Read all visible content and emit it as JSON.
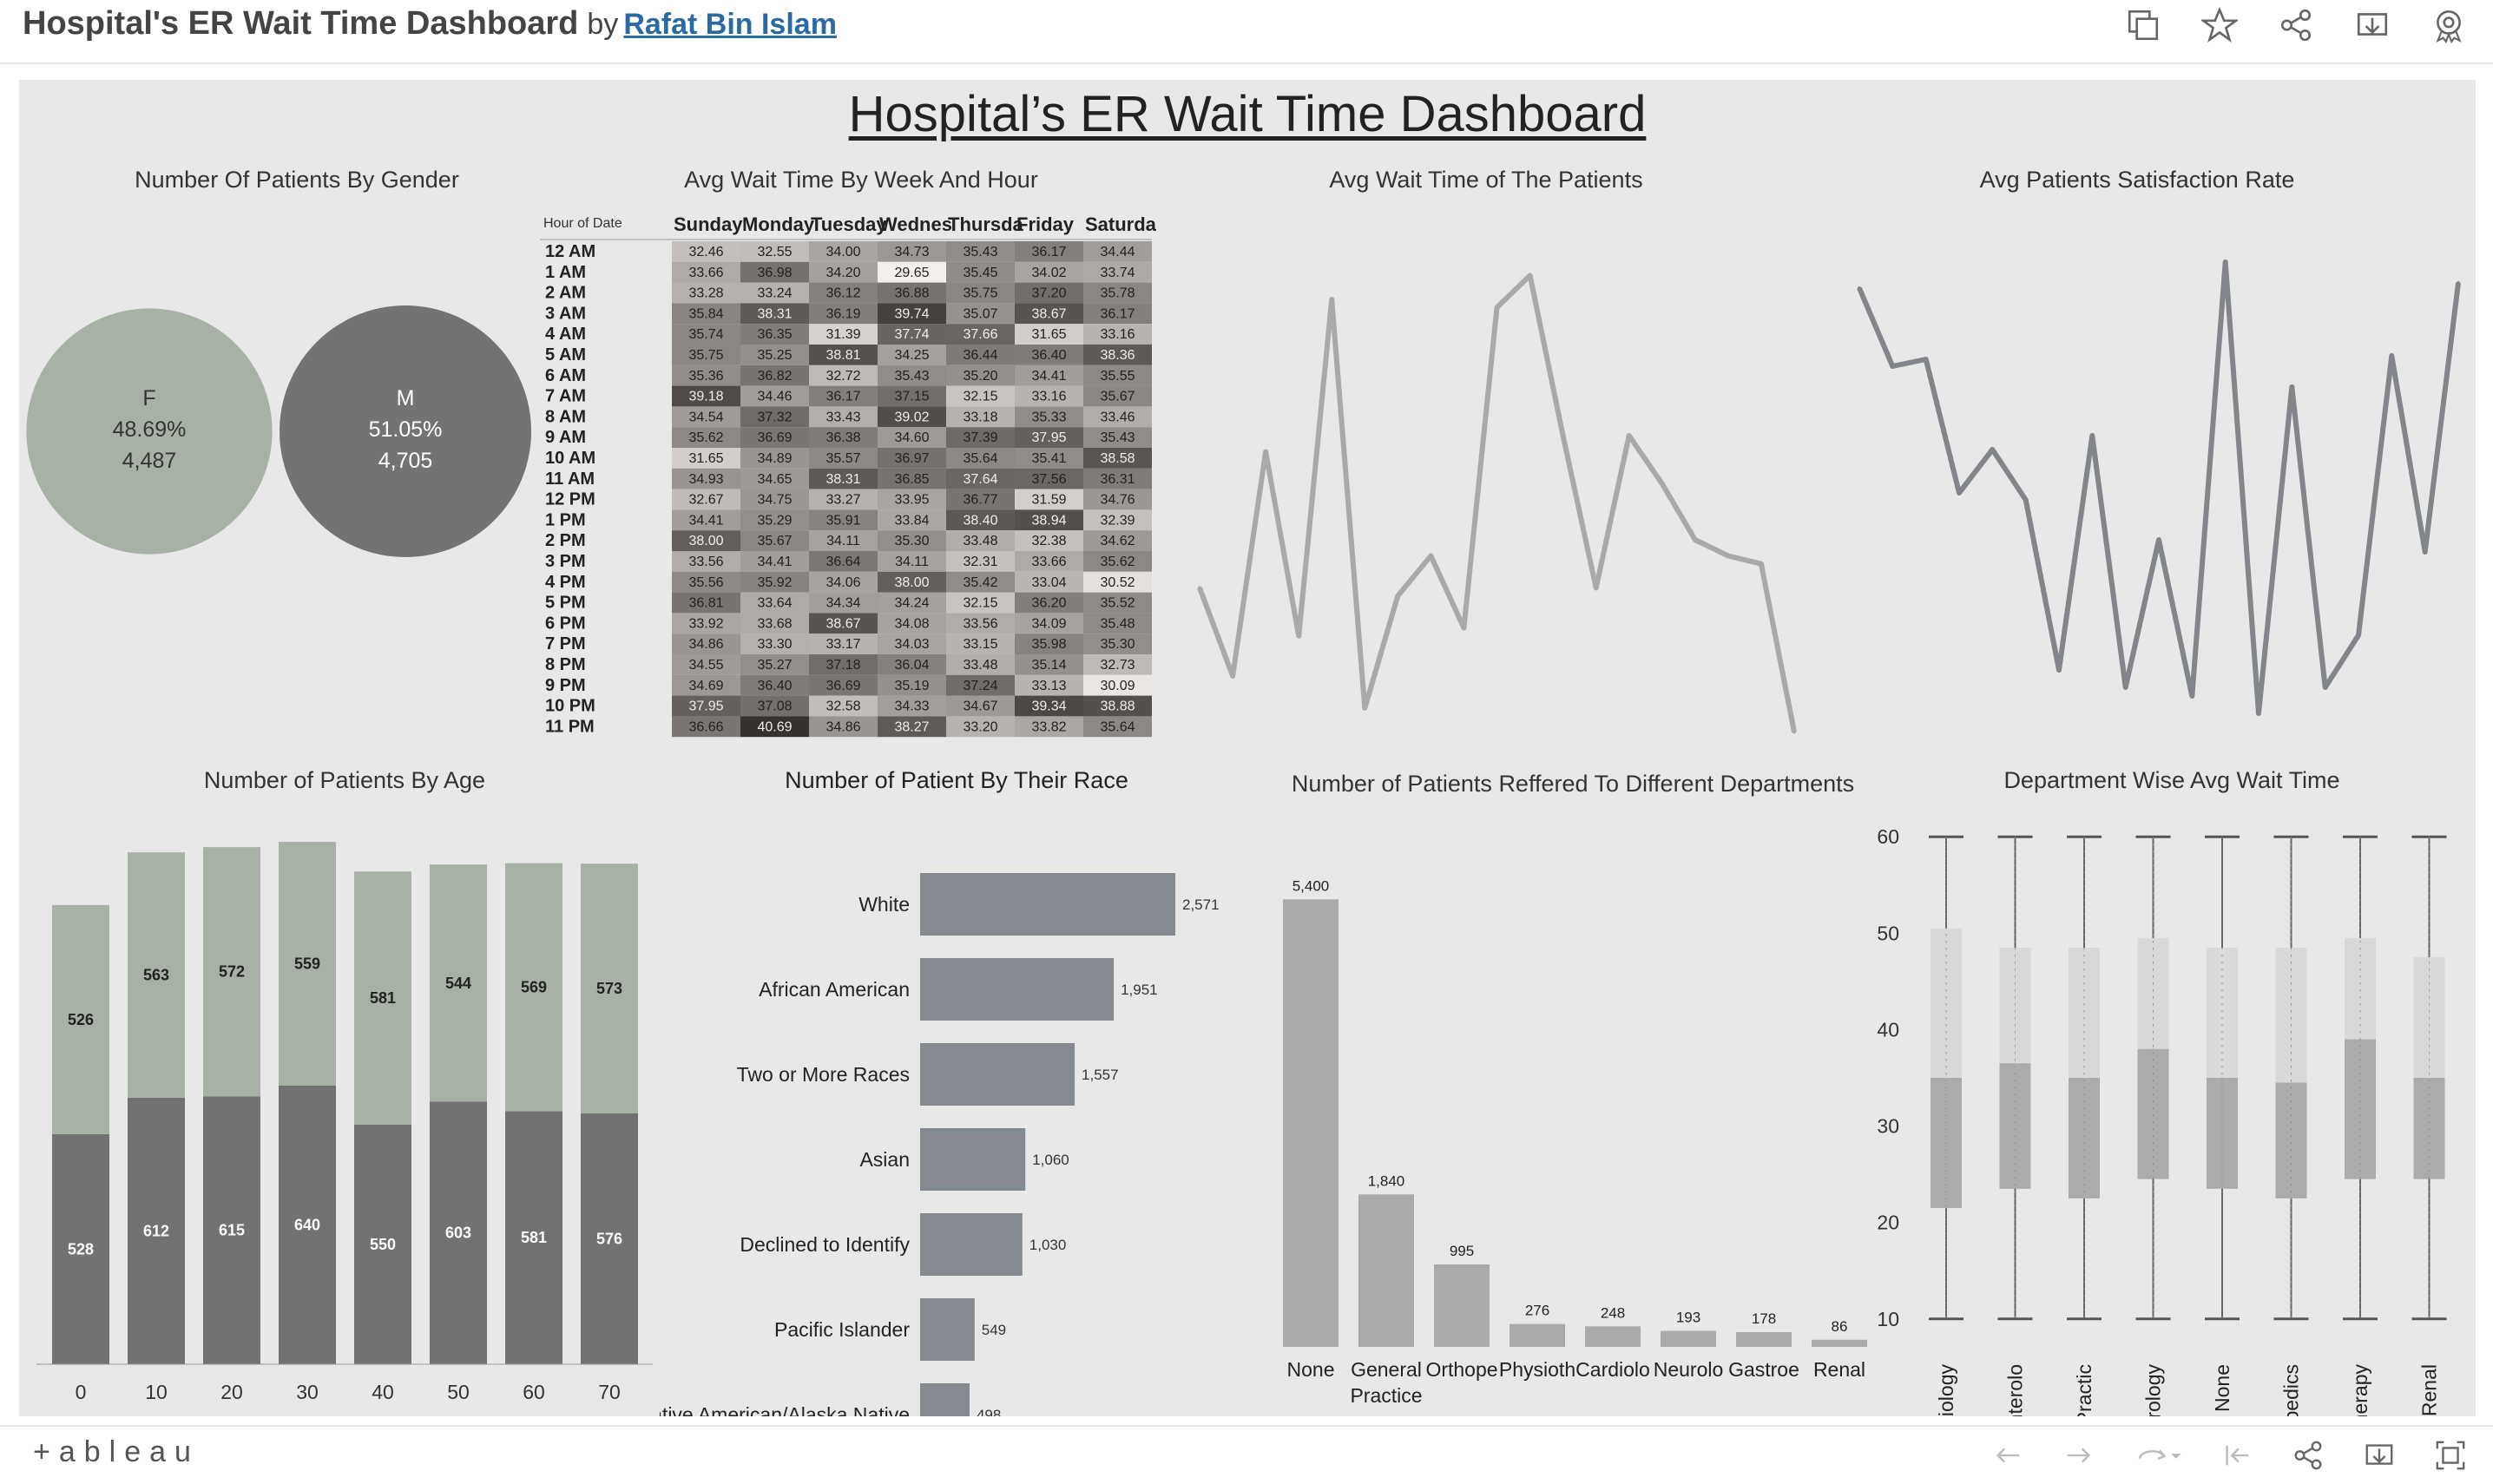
{
  "header": {
    "title": "Hospital's ER Wait Time Dashboard",
    "by": "by",
    "author": "Rafat Bin Islam"
  },
  "toolbar_icons": [
    "copy-icon",
    "star-icon",
    "share-icon",
    "download-icon",
    "badge-icon"
  ],
  "dashboard": {
    "title": "Hospital’s ER Wait Time Dashboard"
  },
  "footer": {
    "logo": "+ableau",
    "icons": [
      "undo-icon",
      "redo-icon",
      "revert-icon",
      "first-icon",
      "share-icon",
      "download-icon",
      "fullscreen-icon"
    ]
  },
  "gender": {
    "title": "Number Of Patients By Gender",
    "items": [
      {
        "label": "F",
        "pct": "48.69%",
        "count": "4,487",
        "value": 4487,
        "color": "#a8b1a6"
      },
      {
        "label": "M",
        "pct": "51.05%",
        "count": "4,705",
        "value": 4705,
        "color": "#737373"
      }
    ]
  },
  "heatmap": {
    "title": "Avg Wait Time By Week And Hour",
    "corner": "Hour of Date",
    "days": [
      "Sunday",
      "Monday",
      "Tuesday",
      "Wednesday",
      "Thursday",
      "Friday",
      "Saturday"
    ],
    "day_labels": [
      "Sunday",
      "Monday",
      "Tuesday",
      "Wednes",
      "Thursda",
      "Friday",
      "Saturda"
    ],
    "hours": [
      "12 AM",
      "1 AM",
      "2 AM",
      "3 AM",
      "4 AM",
      "5 AM",
      "6 AM",
      "7 AM",
      "8 AM",
      "9 AM",
      "10 AM",
      "11 AM",
      "12 PM",
      "1 PM",
      "2 PM",
      "3 PM",
      "4 PM",
      "5 PM",
      "6 PM",
      "7 PM",
      "8 PM",
      "9 PM",
      "10 PM",
      "11 PM"
    ],
    "values": [
      [
        "32.46",
        "32.55",
        "34.00",
        "34.73",
        "35.43",
        "36.17",
        "34.44"
      ],
      [
        "33.66",
        "36.98",
        "34.20",
        "29.65",
        "35.45",
        "34.02",
        "33.74"
      ],
      [
        "33.28",
        "33.24",
        "36.12",
        "36.88",
        "35.75",
        "37.20",
        "35.78"
      ],
      [
        "35.84",
        "38.31",
        "36.19",
        "39.74",
        "35.07",
        "38.67",
        "36.17"
      ],
      [
        "35.74",
        "36.35",
        "31.39",
        "37.74",
        "37.66",
        "31.65",
        "33.16"
      ],
      [
        "35.75",
        "35.25",
        "38.81",
        "34.25",
        "36.44",
        "36.40",
        "38.36"
      ],
      [
        "35.36",
        "36.82",
        "32.72",
        "35.43",
        "35.20",
        "34.41",
        "35.55"
      ],
      [
        "39.18",
        "34.46",
        "36.17",
        "37.15",
        "32.15",
        "33.16",
        "35.67"
      ],
      [
        "34.54",
        "37.32",
        "33.43",
        "39.02",
        "33.18",
        "35.33",
        "33.46"
      ],
      [
        "35.62",
        "36.69",
        "36.38",
        "34.60",
        "37.39",
        "37.95",
        "35.43"
      ],
      [
        "31.65",
        "34.89",
        "35.57",
        "36.97",
        "35.64",
        "35.41",
        "38.58"
      ],
      [
        "34.93",
        "34.65",
        "38.31",
        "36.85",
        "37.64",
        "37.56",
        "36.31"
      ],
      [
        "32.67",
        "34.75",
        "33.27",
        "33.95",
        "36.77",
        "31.59",
        "34.76"
      ],
      [
        "34.41",
        "35.29",
        "35.91",
        "33.84",
        "38.40",
        "38.94",
        "32.39"
      ],
      [
        "38.00",
        "35.67",
        "34.11",
        "35.30",
        "33.48",
        "32.38",
        "34.62"
      ],
      [
        "33.56",
        "34.41",
        "36.64",
        "34.11",
        "32.31",
        "33.66",
        "35.62"
      ],
      [
        "35.56",
        "35.92",
        "34.06",
        "38.00",
        "35.42",
        "33.04",
        "30.52"
      ],
      [
        "36.81",
        "33.64",
        "34.34",
        "34.24",
        "32.15",
        "36.20",
        "35.52"
      ],
      [
        "33.92",
        "33.68",
        "38.67",
        "34.08",
        "33.56",
        "34.09",
        "35.48"
      ],
      [
        "34.86",
        "33.30",
        "33.17",
        "34.03",
        "33.15",
        "35.98",
        "35.30"
      ],
      [
        "34.55",
        "35.27",
        "37.18",
        "36.04",
        "33.48",
        "35.14",
        "32.73"
      ],
      [
        "34.69",
        "36.40",
        "36.69",
        "35.19",
        "37.24",
        "33.13",
        "30.09"
      ],
      [
        "37.95",
        "37.08",
        "32.58",
        "34.33",
        "34.67",
        "39.34",
        "38.88"
      ],
      [
        "36.66",
        "40.69",
        "34.86",
        "38.27",
        "33.20",
        "33.82",
        "35.64"
      ]
    ]
  },
  "wait_line": {
    "title": "Avg Wait Time of The Patients",
    "values": [
      35.5,
      34.4,
      37.2,
      34.9,
      39.1,
      34.0,
      35.4,
      35.9,
      35.0,
      39.0,
      39.4,
      37.4,
      35.5,
      37.4,
      36.8,
      36.1,
      35.9,
      35.8,
      33.7
    ],
    "ylim": [
      33.5,
      40
    ]
  },
  "satisfaction_line": {
    "title": "Avg Patients Satisfaction Rate",
    "values": [
      5.45,
      5.0,
      5.04,
      4.27,
      4.52,
      4.23,
      3.25,
      4.6,
      3.15,
      4.0,
      3.1,
      5.6,
      3.0,
      4.88,
      3.15,
      3.45,
      5.06,
      3.93,
      5.48
    ],
    "ylim": [
      2.8,
      5.8
    ]
  },
  "age": {
    "title": "Number of Patients By Age",
    "categories": [
      "0",
      "10",
      "20",
      "30",
      "40",
      "50",
      "60",
      "70"
    ],
    "series": [
      {
        "values": [
          528,
          612,
          615,
          640,
          550,
          603,
          581,
          576
        ],
        "color": "#727272"
      },
      {
        "values": [
          526,
          563,
          572,
          559,
          581,
          544,
          569,
          573
        ],
        "color": "#a8b1a6"
      }
    ]
  },
  "race": {
    "title": "Number of Patient By Their Race",
    "categories": [
      "White",
      "African American",
      "Two or More Races",
      "Asian",
      "Declined to Identify",
      "Pacific Islander",
      "Native American/Alaska Native"
    ],
    "values": [
      2571,
      1951,
      1557,
      1060,
      1030,
      549,
      498
    ],
    "labels": [
      "2,571",
      "1,951",
      "1,557",
      "1,060",
      "1,030",
      "549",
      "498"
    ],
    "color": "#858a90"
  },
  "departments": {
    "title": "Number of Patients Reffered To Different Departments",
    "categories": [
      "None",
      "General Practice",
      "Orthopedics",
      "Physiotherapy",
      "Cardiology",
      "Neurology",
      "Gastroenterology",
      "Renal"
    ],
    "tick_lines": [
      [
        "None"
      ],
      [
        "General",
        "Practice"
      ],
      [
        "Orthope"
      ],
      [
        "Physioth"
      ],
      [
        "Cardiolo"
      ],
      [
        "Neurolo"
      ],
      [
        "Gastroe"
      ],
      [
        "Renal"
      ]
    ],
    "values": [
      5400,
      1840,
      995,
      276,
      248,
      193,
      178,
      86
    ],
    "labels": [
      "5,400",
      "1,840",
      "995",
      "276",
      "248",
      "193",
      "178",
      "86"
    ],
    "color": "#a8aaab"
  },
  "boxplot": {
    "title": "Department Wise Avg Wait Time",
    "ylim": [
      8,
      62
    ],
    "yticks": [
      "10",
      "20",
      "30",
      "40",
      "50",
      "60"
    ],
    "categories": [
      "Cardiology",
      "Gastroenterology",
      "General Practice",
      "Neurology",
      "None",
      "Orthopedics",
      "Physiotherapy",
      "Renal"
    ],
    "tick_labels": [
      "Cardiology",
      "Gastroenterolo",
      "General Practic",
      "Neurology",
      "None",
      "Orthopedics",
      "Physiotherapy",
      "Renal"
    ],
    "boxes": [
      {
        "min": 10,
        "q1": 21.5,
        "median": 35,
        "q3": 50.5,
        "max": 60
      },
      {
        "min": 10,
        "q1": 23.5,
        "median": 36.5,
        "q3": 48.5,
        "max": 60
      },
      {
        "min": 10,
        "q1": 22.5,
        "median": 35,
        "q3": 48.5,
        "max": 60
      },
      {
        "min": 10,
        "q1": 24.5,
        "median": 38,
        "q3": 49.5,
        "max": 60
      },
      {
        "min": 10,
        "q1": 23.5,
        "median": 35,
        "q3": 48.5,
        "max": 60
      },
      {
        "min": 10,
        "q1": 22.5,
        "median": 34.5,
        "q3": 48.5,
        "max": 60
      },
      {
        "min": 10,
        "q1": 24.5,
        "median": 39,
        "q3": 49.5,
        "max": 60
      },
      {
        "min": 10,
        "q1": 24.5,
        "median": 35,
        "q3": 47.5,
        "max": 60
      }
    ]
  }
}
